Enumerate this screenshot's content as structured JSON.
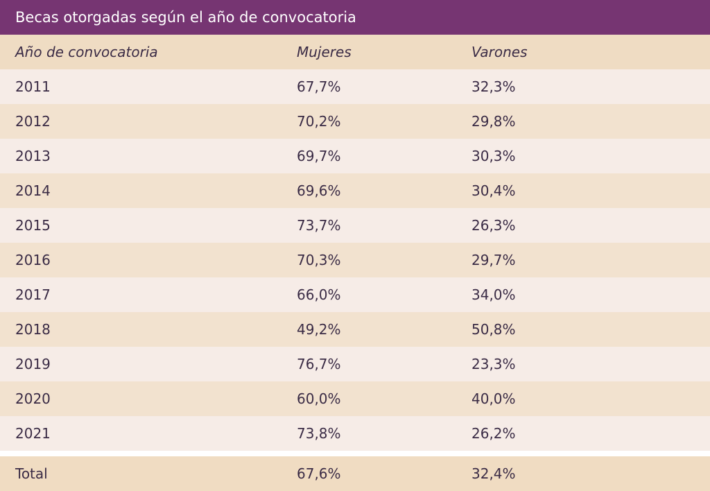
{
  "table": {
    "title": "Becas otorgadas según el año de convocatoria",
    "headers": [
      "Año de convocatoria",
      "Mujeres",
      "Varones"
    ],
    "rows": [
      [
        "2011",
        "67,7%",
        "32,3%"
      ],
      [
        "2012",
        "70,2%",
        "29,8%"
      ],
      [
        "2013",
        "69,7%",
        "30,3%"
      ],
      [
        "2014",
        "69,6%",
        "30,4%"
      ],
      [
        "2015",
        "73,7%",
        "26,3%"
      ],
      [
        "2016",
        "70,3%",
        "29,7%"
      ],
      [
        "2017",
        "66,0%",
        "34,0%"
      ],
      [
        "2018",
        "49,2%",
        "50,8%"
      ],
      [
        "2019",
        "76,7%",
        "23,3%"
      ],
      [
        "2020",
        "60,0%",
        "40,0%"
      ],
      [
        "2021",
        "73,8%",
        "26,2%"
      ]
    ],
    "total": [
      "Total",
      "67,6%",
      "32,4%"
    ]
  },
  "colors": {
    "title_bg": "#763572",
    "header_bg": "#efdcc3",
    "row_odd_bg": "#f6ece7",
    "row_even_bg": "#f2e2cf",
    "text": "#3a2b45"
  }
}
